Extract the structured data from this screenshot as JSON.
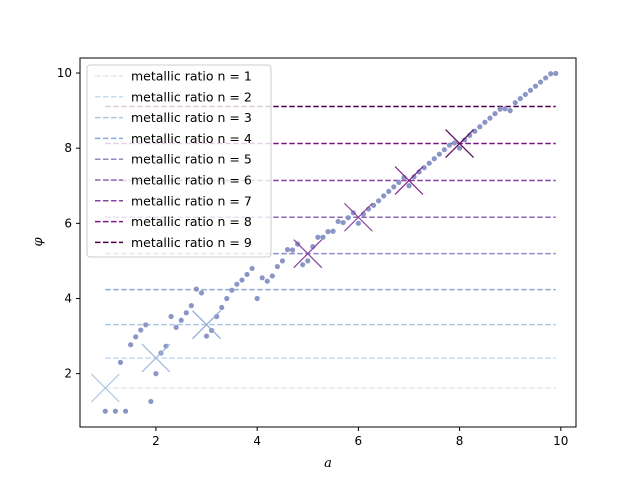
{
  "chart_data": {
    "type": "scatter",
    "xlabel": "a",
    "ylabel": "φ",
    "xlim": [
      0.5,
      10.3
    ],
    "ylim": [
      0.58,
      10.4
    ],
    "x_ticks": [
      "2",
      "4",
      "6",
      "8",
      "10"
    ],
    "y_ticks": [
      "2",
      "4",
      "6",
      "8",
      "10"
    ],
    "x_tick_values": [
      2,
      4,
      6,
      8,
      10
    ],
    "y_tick_values": [
      2,
      4,
      6,
      8,
      10
    ],
    "grid": false,
    "legend_position": "upper-left",
    "scatter_color": "#8c96c6",
    "ratio_lines": [
      {
        "label": "metallic ratio n = 1",
        "n": 1,
        "value": 1.618,
        "color": "#e0ecf4"
      },
      {
        "label": "metallic ratio n = 2",
        "n": 2,
        "value": 2.414,
        "color": "#c6dbef"
      },
      {
        "label": "metallic ratio n = 3",
        "n": 3,
        "value": 3.303,
        "color": "#abc7e1"
      },
      {
        "label": "metallic ratio n = 4",
        "n": 4,
        "value": 4.236,
        "color": "#8eabd4"
      },
      {
        "label": "metallic ratio n = 5",
        "n": 5,
        "value": 5.193,
        "color": "#8c8dc4"
      },
      {
        "label": "metallic ratio n = 6",
        "n": 6,
        "value": 6.162,
        "color": "#8968b3"
      },
      {
        "label": "metallic ratio n = 7",
        "n": 7,
        "value": 7.14,
        "color": "#87419f"
      },
      {
        "label": "metallic ratio n = 8",
        "n": 8,
        "value": 8.123,
        "color": "#7a1683"
      },
      {
        "label": "metallic ratio n = 9",
        "n": 9,
        "value": 9.11,
        "color": "#4d004b"
      }
    ],
    "markers": [
      {
        "n": 1,
        "x": 1.0,
        "y": 1.618,
        "color": "#abc7e1"
      },
      {
        "n": 2,
        "x": 2.0,
        "y": 2.414,
        "color": "#9fb9dc"
      },
      {
        "n": 3,
        "x": 3.0,
        "y": 3.303,
        "color": "#8eabd4"
      },
      {
        "n": 5,
        "x": 5.0,
        "y": 5.193,
        "color": "#87419f"
      },
      {
        "n": 6,
        "x": 6.0,
        "y": 6.162,
        "color": "#87419f"
      },
      {
        "n": 7,
        "x": 7.0,
        "y": 7.14,
        "color": "#7a1683"
      },
      {
        "n": 8,
        "x": 8.0,
        "y": 8.123,
        "color": "#5a0a5a"
      }
    ],
    "points": [
      [
        1.0,
        1.0
      ],
      [
        1.2,
        1.0
      ],
      [
        1.3,
        2.3
      ],
      [
        1.4,
        1.0
      ],
      [
        1.5,
        2.77
      ],
      [
        1.6,
        2.98
      ],
      [
        1.7,
        3.16
      ],
      [
        1.8,
        3.3
      ],
      [
        1.9,
        1.26
      ],
      [
        2.0,
        2.0
      ],
      [
        2.1,
        2.55
      ],
      [
        2.2,
        2.73
      ],
      [
        2.3,
        3.52
      ],
      [
        2.4,
        3.23
      ],
      [
        2.5,
        3.42
      ],
      [
        2.6,
        3.62
      ],
      [
        2.7,
        3.81
      ],
      [
        2.8,
        4.25
      ],
      [
        2.9,
        4.15
      ],
      [
        3.0,
        3.0
      ],
      [
        3.1,
        3.15
      ],
      [
        3.2,
        3.52
      ],
      [
        3.3,
        3.76
      ],
      [
        3.4,
        4.0
      ],
      [
        3.5,
        4.22
      ],
      [
        3.6,
        4.38
      ],
      [
        3.7,
        4.49
      ],
      [
        3.8,
        4.64
      ],
      [
        3.9,
        4.8
      ],
      [
        4.0,
        4.0
      ],
      [
        4.1,
        4.55
      ],
      [
        4.2,
        4.46
      ],
      [
        4.3,
        4.6
      ],
      [
        4.4,
        4.85
      ],
      [
        4.5,
        5.0
      ],
      [
        4.6,
        5.3
      ],
      [
        4.7,
        5.29
      ],
      [
        4.8,
        5.45
      ],
      [
        4.9,
        4.9
      ],
      [
        5.0,
        5.0
      ],
      [
        5.1,
        5.38
      ],
      [
        5.2,
        5.63
      ],
      [
        5.3,
        5.63
      ],
      [
        5.4,
        5.78
      ],
      [
        5.5,
        5.79
      ],
      [
        5.6,
        6.05
      ],
      [
        5.7,
        6.02
      ],
      [
        5.8,
        6.15
      ],
      [
        5.9,
        6.28
      ],
      [
        6.0,
        6.0
      ],
      [
        6.1,
        6.25
      ],
      [
        6.2,
        6.38
      ],
      [
        6.3,
        6.48
      ],
      [
        6.4,
        6.6
      ],
      [
        6.5,
        6.73
      ],
      [
        6.6,
        6.85
      ],
      [
        6.7,
        6.97
      ],
      [
        6.8,
        7.09
      ],
      [
        6.9,
        7.22
      ],
      [
        7.0,
        7.0
      ],
      [
        7.1,
        7.24
      ],
      [
        7.2,
        7.37
      ],
      [
        7.3,
        7.48
      ],
      [
        7.4,
        7.6
      ],
      [
        7.5,
        7.72
      ],
      [
        7.6,
        7.84
      ],
      [
        7.7,
        7.96
      ],
      [
        7.8,
        8.08
      ],
      [
        7.9,
        8.14
      ],
      [
        8.0,
        8.0
      ],
      [
        8.1,
        8.22
      ],
      [
        8.2,
        8.34
      ],
      [
        8.3,
        8.45
      ],
      [
        8.4,
        8.57
      ],
      [
        8.5,
        8.69
      ],
      [
        8.6,
        8.8
      ],
      [
        8.7,
        8.92
      ],
      [
        8.8,
        9.04
      ],
      [
        8.9,
        9.05
      ],
      [
        9.0,
        9.0
      ],
      [
        9.1,
        9.21
      ],
      [
        9.2,
        9.32
      ],
      [
        9.3,
        9.43
      ],
      [
        9.4,
        9.54
      ],
      [
        9.5,
        9.65
      ],
      [
        9.6,
        9.76
      ],
      [
        9.7,
        9.87
      ],
      [
        9.8,
        9.98
      ],
      [
        9.9,
        9.99
      ]
    ]
  }
}
